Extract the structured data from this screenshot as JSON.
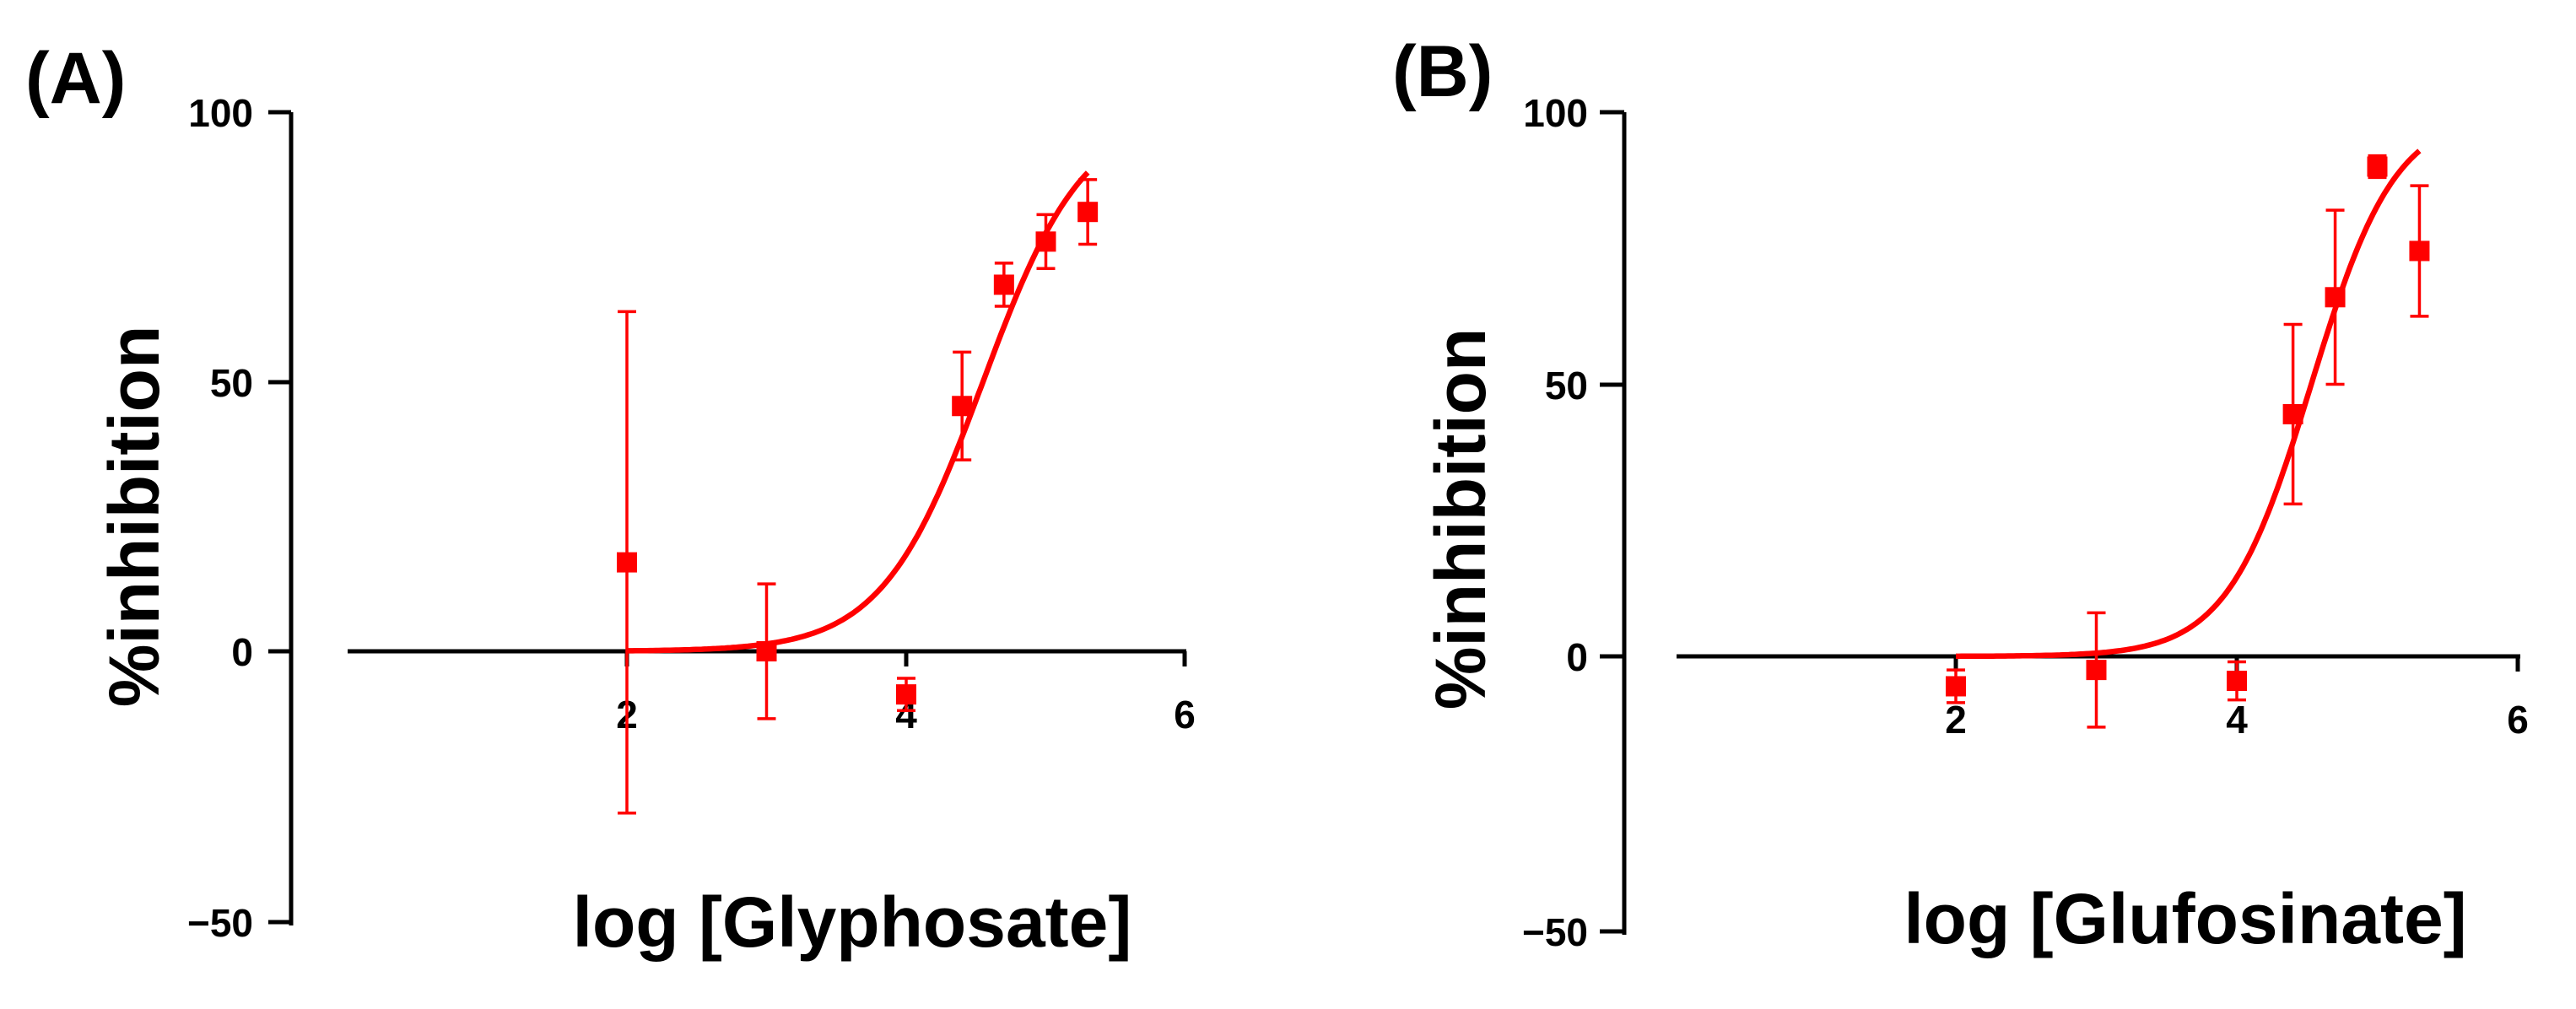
{
  "figure": {
    "panels": [
      "(A)",
      "(B)"
    ]
  },
  "chart_data": [
    {
      "type": "scatter",
      "panel_label": "(A)",
      "title": "",
      "xlabel": "log [Glyphosate]",
      "ylabel": "%inhibition",
      "xlim": [
        0,
        6
      ],
      "ylim": [
        -50,
        100
      ],
      "xticks": [
        {
          "value": 2,
          "label": "2"
        },
        {
          "value": 4,
          "label": "4"
        },
        {
          "value": 6,
          "label": "6"
        }
      ],
      "yticks": [
        {
          "value": 100,
          "label": "100"
        },
        {
          "value": 50,
          "label": "50"
        },
        {
          "value": 0,
          "label": "0"
        },
        {
          "value": -50,
          "label": "−50"
        }
      ],
      "color": "#ff0000",
      "series": [
        {
          "name": "Glyphosate",
          "points": [
            {
              "x": 2.0,
              "y": 16.5,
              "err": 46.5
            },
            {
              "x": 3.0,
              "y": 0.0,
              "err": 12.5
            },
            {
              "x": 4.0,
              "y": -8.0,
              "err": 3.0
            },
            {
              "x": 4.4,
              "y": 45.5,
              "err": 10.0
            },
            {
              "x": 4.7,
              "y": 68.0,
              "err": 4.0
            },
            {
              "x": 5.0,
              "y": 76.0,
              "err": 5.0
            },
            {
              "x": 5.3,
              "y": 81.5,
              "err": 6.0
            }
          ]
        }
      ],
      "fit": {
        "model": "sigmoid",
        "bottom": 0,
        "top": 100,
        "logIC50": 4.55,
        "hill": 1.2,
        "x_start": 2.0,
        "x_end": 5.3
      }
    },
    {
      "type": "scatter",
      "panel_label": "(B)",
      "title": "",
      "xlabel": "log [Glufosinate]",
      "ylabel": "%inhibition",
      "xlim": [
        0,
        6
      ],
      "ylim": [
        -50,
        100
      ],
      "xticks": [
        {
          "value": 2,
          "label": "2"
        },
        {
          "value": 4,
          "label": "4"
        },
        {
          "value": 6,
          "label": "6"
        }
      ],
      "yticks": [
        {
          "value": 100,
          "label": "100"
        },
        {
          "value": 50,
          "label": "50"
        },
        {
          "value": 0,
          "label": "0"
        },
        {
          "value": -50,
          "label": "−50"
        }
      ],
      "color": "#ff0000",
      "series": [
        {
          "name": "Glufosinate",
          "points": [
            {
              "x": 2.0,
              "y": -5.5,
              "err": 3.0
            },
            {
              "x": 3.0,
              "y": -2.5,
              "err": 10.5
            },
            {
              "x": 4.0,
              "y": -4.5,
              "err": 3.5
            },
            {
              "x": 4.4,
              "y": 44.5,
              "err": 16.5
            },
            {
              "x": 4.7,
              "y": 66.0,
              "err": 16.0
            },
            {
              "x": 5.0,
              "y": 90.0,
              "err": 2.0
            },
            {
              "x": 5.3,
              "y": 74.5,
              "err": 12.0
            }
          ]
        }
      ],
      "fit": {
        "model": "sigmoid",
        "bottom": 0,
        "top": 100,
        "logIC50": 4.53,
        "hill": 1.45,
        "x_start": 2.0,
        "x_end": 5.3
      }
    }
  ]
}
